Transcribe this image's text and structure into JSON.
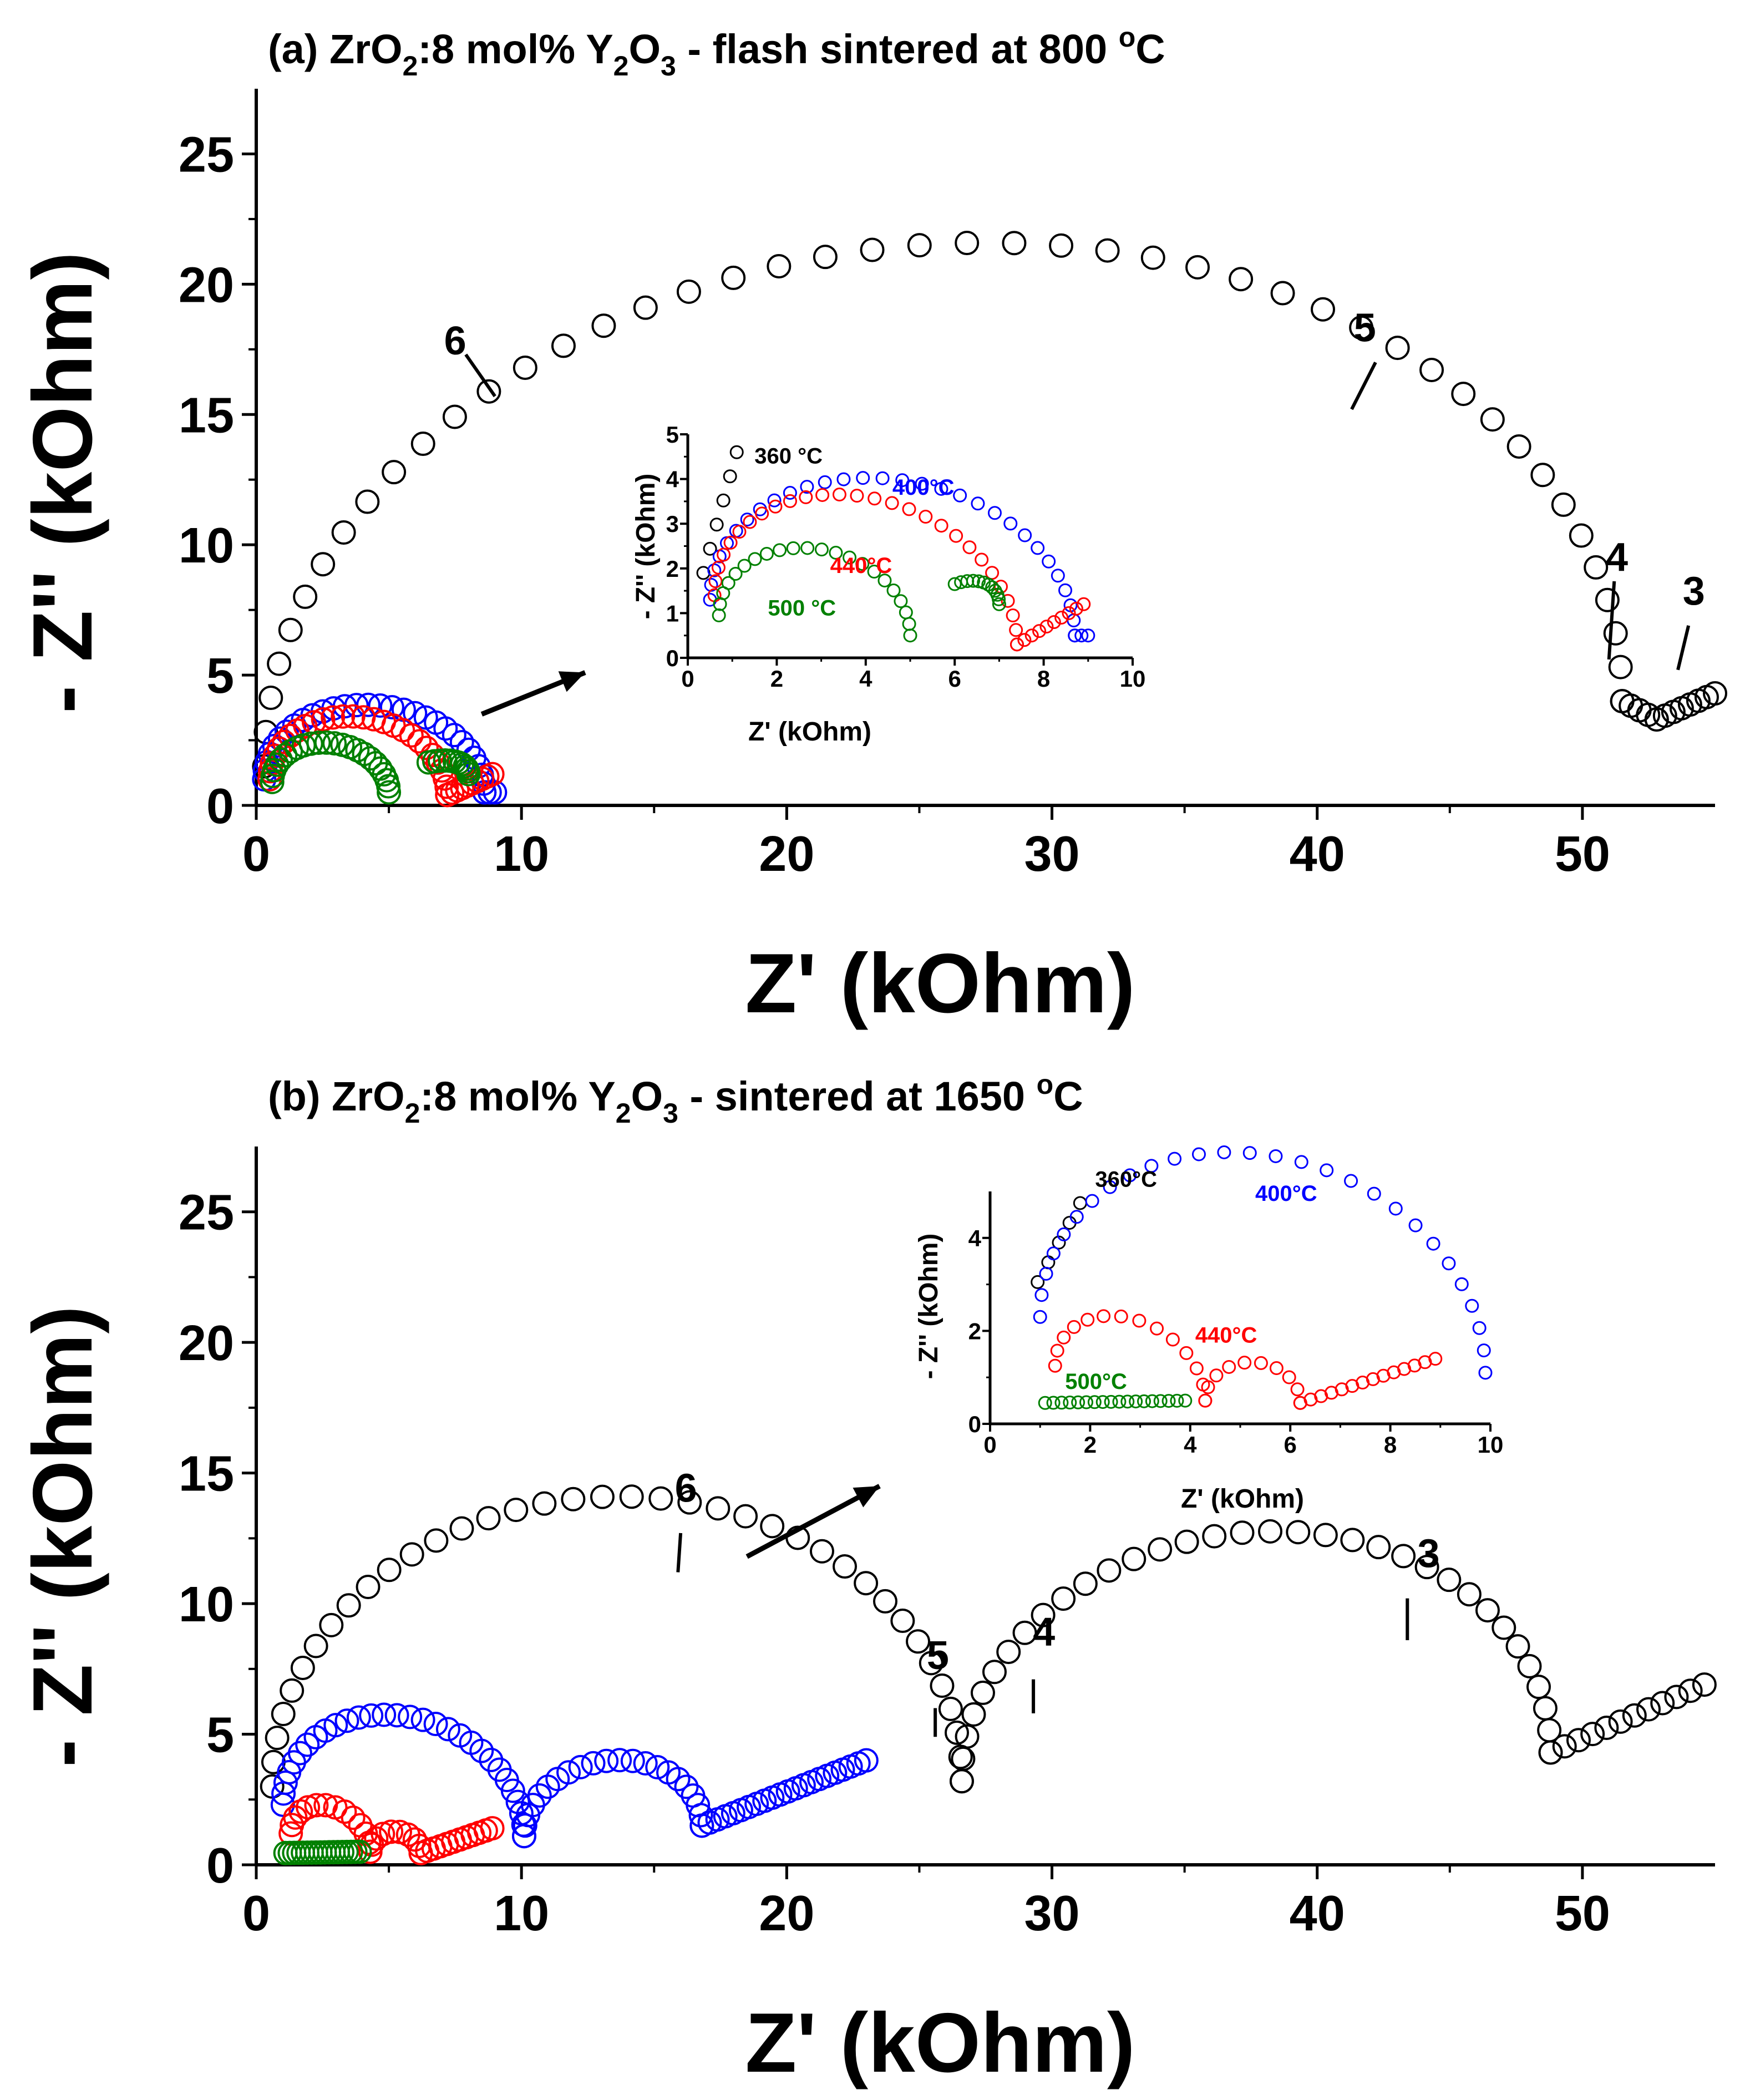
{
  "chart_data": [
    {
      "id": "a",
      "type": "scatter",
      "title": {
        "prefix": "(a)  ZrO",
        "sub1": "2",
        "mid": ":8 mol% Y",
        "sub2": "2",
        "mid2": "O",
        "sub3": "3",
        "suffix": " - flash sintered at 800 ",
        "sup": "o",
        "unit": "C"
      },
      "xlabel": "Z' (kOhm)",
      "ylabel": "- Z'' (kOhm)",
      "xlim": [
        0,
        55
      ],
      "ylim": [
        0,
        27.5
      ],
      "xticks": [
        0,
        10,
        20,
        30,
        40,
        50
      ],
      "yticks": [
        0,
        5,
        10,
        15,
        20,
        25
      ],
      "series": [
        {
          "name": "360 °C",
          "color": "#000000",
          "segments": [
            {
              "kind": "arc",
              "x0": 0.3,
              "x1": 51.5,
              "h": 18.8,
              "n": 46,
              "y0": 1.5,
              "y1": 4.0
            },
            {
              "kind": "line",
              "from": [
                51.5,
                4.0
              ],
              "to": [
                52.8,
                3.3
              ],
              "n": 5
            },
            {
              "kind": "line",
              "from": [
                52.8,
                3.3
              ],
              "to": [
                55,
                4.3
              ],
              "n": 8
            }
          ]
        },
        {
          "name": "400°C",
          "color": "#0000ff",
          "segments": [
            {
              "kind": "arc",
              "x0": 0.3,
              "x1": 8.6,
              "h": 3.1,
              "n": 30,
              "y0": 1.0,
              "y1": 0.5
            },
            {
              "kind": "line",
              "from": [
                8.6,
                0.5
              ],
              "to": [
                9.0,
                0.5
              ],
              "n": 3
            }
          ]
        },
        {
          "name": "440°C",
          "color": "#ff0000",
          "segments": [
            {
              "kind": "arc",
              "x0": 0.5,
              "x1": 7.2,
              "h": 2.7,
              "n": 28,
              "y0": 1.0,
              "y1": 0.4
            },
            {
              "kind": "line",
              "from": [
                7.2,
                0.4
              ],
              "to": [
                8.9,
                1.2
              ],
              "n": 10
            }
          ]
        },
        {
          "name": "500 °C",
          "color": "#008000",
          "segments": [
            {
              "kind": "arc",
              "x0": 0.6,
              "x1": 5.0,
              "h": 1.7,
              "n": 24,
              "y0": 0.9,
              "y1": 0.5
            },
            {
              "kind": "arc",
              "x0": 5.0,
              "x1": 8.0,
              "h": 0.8,
              "n": 12,
              "y0": 0.5,
              "y1": 1.2,
              "half": true
            }
          ]
        }
      ],
      "annotations": [
        {
          "text": "6",
          "x": 7.5,
          "y": 17.3,
          "line": [
            [
              7.9,
              17.3
            ],
            [
              9.0,
              15.7
            ]
          ]
        },
        {
          "text": "5",
          "x": 41.8,
          "y": 17.8,
          "line": [
            [
              42.2,
              17.0
            ],
            [
              41.3,
              15.2
            ]
          ]
        },
        {
          "text": "4",
          "x": 51.3,
          "y": 9.0,
          "line": [
            [
              51.2,
              8.6
            ],
            [
              51.0,
              5.6
            ]
          ]
        },
        {
          "text": "3",
          "x": 54.2,
          "y": 7.7,
          "line": [
            [
              54.0,
              6.9
            ],
            [
              53.6,
              5.2
            ]
          ]
        }
      ],
      "arrow": {
        "from": [
          8.5,
          3.5
        ],
        "to": [
          12.4,
          5.1
        ]
      },
      "inset": {
        "xlabel": "Z' (kOhm)",
        "ylabel": "- Z'' (kOhm)",
        "xlim": [
          0,
          10
        ],
        "ylim": [
          0,
          5
        ],
        "xticks": [
          0,
          2,
          4,
          6,
          8,
          10
        ],
        "yticks": [
          0,
          1,
          2,
          3,
          4,
          5
        ],
        "series": [
          {
            "name": "360 °C",
            "color": "#000000",
            "segments": [
              {
                "kind": "line",
                "from": [
                  0.35,
                  1.9
                ],
                "to": [
                  1.1,
                  4.6
                ],
                "n": 6
              }
            ]
          },
          {
            "name": "400°C",
            "color": "#0000ff",
            "segments": [
              {
                "kind": "arc",
                "x0": 0.5,
                "x1": 8.7,
                "h": 3.1,
                "n": 30,
                "y0": 1.3,
                "y1": 0.5
              },
              {
                "kind": "line",
                "from": [
                  8.7,
                  0.5
                ],
                "to": [
                  9.0,
                  0.5
                ],
                "n": 3
              }
            ]
          },
          {
            "name": "440°C",
            "color": "#ff0000",
            "segments": [
              {
                "kind": "arc",
                "x0": 0.6,
                "x1": 7.4,
                "h": 2.75,
                "n": 28,
                "y0": 1.4,
                "y1": 0.3
              },
              {
                "kind": "line",
                "from": [
                  7.4,
                  0.3
                ],
                "to": [
                  8.9,
                  1.2
                ],
                "n": 10
              }
            ]
          },
          {
            "name": "500 °C",
            "color": "#008000",
            "segments": [
              {
                "kind": "arc",
                "x0": 0.7,
                "x1": 5.0,
                "h": 1.72,
                "n": 22,
                "y0": 0.95,
                "y1": 0.5
              },
              {
                "kind": "arc",
                "x0": 5.0,
                "x1": 7.0,
                "h": 0.8,
                "n": 12,
                "y0": 0.5,
                "y1": 1.2,
                "half": true
              }
            ]
          }
        ],
        "labels": [
          {
            "text": "360 °C",
            "x": 1.5,
            "y": 4.35,
            "color": "#000000"
          },
          {
            "text": "400°C",
            "x": 4.6,
            "y": 3.65,
            "color": "#0000ff"
          },
          {
            "text": "440°C",
            "x": 3.2,
            "y": 1.9,
            "color": "#ff0000"
          },
          {
            "text": "500 °C",
            "x": 1.8,
            "y": 0.95,
            "color": "#008000"
          }
        ]
      }
    },
    {
      "id": "b",
      "type": "scatter",
      "title": {
        "prefix": "(b) ZrO",
        "sub1": "2",
        "mid": ":8 mol% Y",
        "sub2": "2",
        "mid2": "O",
        "sub3": "3",
        "suffix": " - sintered at 1650 ",
        "sup": "o",
        "unit": "C"
      },
      "xlabel": "Z' (kOhm)",
      "ylabel": "- Z'' (kOhm)",
      "xlim": [
        0,
        55
      ],
      "ylim": [
        0,
        27.5
      ],
      "xticks": [
        0,
        10,
        20,
        30,
        40,
        50
      ],
      "yticks": [
        0,
        5,
        10,
        15,
        20,
        25
      ],
      "series": [
        {
          "name": "360°C",
          "color": "#000000",
          "segments": [
            {
              "kind": "arc",
              "x0": 0.6,
              "x1": 26.6,
              "h": 11.0,
              "n": 38,
              "y0": 3.0,
              "y1": 3.2
            },
            {
              "kind": "arc",
              "x0": 26.6,
              "x1": 48.8,
              "h": 9.0,
              "n": 34,
              "y0": 3.2,
              "y1": 4.3
            },
            {
              "kind": "line",
              "from": [
                48.8,
                4.3
              ],
              "to": [
                54.6,
                6.9
              ],
              "n": 12
            }
          ]
        },
        {
          "name": "400°C",
          "color": "#0000ff",
          "segments": [
            {
              "kind": "arc",
              "x0": 1.0,
              "x1": 10.1,
              "h": 4.0,
              "n": 30,
              "y0": 2.3,
              "y1": 1.1
            },
            {
              "kind": "arc",
              "x0": 10.1,
              "x1": 16.8,
              "h": 2.7,
              "n": 22,
              "y0": 1.1,
              "y1": 1.5
            },
            {
              "kind": "line",
              "from": [
                16.8,
                1.5
              ],
              "to": [
                23.0,
                4.0
              ],
              "n": 22
            }
          ]
        },
        {
          "name": "440°C",
          "color": "#ff0000",
          "segments": [
            {
              "kind": "arc",
              "x0": 1.3,
              "x1": 4.3,
              "h": 1.4,
              "n": 14,
              "y0": 1.2,
              "y1": 0.5
            },
            {
              "kind": "arc",
              "x0": 4.3,
              "x1": 6.2,
              "h": 0.8,
              "n": 10,
              "y0": 0.5,
              "y1": 0.45
            },
            {
              "kind": "line",
              "from": [
                6.2,
                0.45
              ],
              "to": [
                8.9,
                1.4
              ],
              "n": 12
            }
          ]
        },
        {
          "name": "500°C",
          "color": "#008000",
          "segments": [
            {
              "kind": "line",
              "from": [
                1.1,
                0.45
              ],
              "to": [
                3.9,
                0.5
              ],
              "n": 18
            }
          ]
        }
      ],
      "annotations": [
        {
          "text": "6",
          "x": 16.2,
          "y": 13.9,
          "line": [
            [
              16.0,
              12.7
            ],
            [
              15.9,
              11.2
            ]
          ]
        },
        {
          "text": "5",
          "x": 25.7,
          "y": 7.5,
          "line": [
            [
              25.6,
              6.0
            ],
            [
              25.6,
              4.9
            ]
          ]
        },
        {
          "text": "4",
          "x": 29.7,
          "y": 8.4,
          "line": [
            [
              29.3,
              7.1
            ],
            [
              29.3,
              5.8
            ]
          ]
        },
        {
          "text": "3",
          "x": 44.2,
          "y": 11.4,
          "line": [
            [
              43.4,
              10.2
            ],
            [
              43.4,
              8.6
            ]
          ]
        }
      ],
      "arrow": {
        "from": [
          18.5,
          11.8
        ],
        "to": [
          23.5,
          14.5
        ]
      },
      "inset": {
        "xlabel": "Z' (kOhm)",
        "ylabel": "- Z'' (kOhm)",
        "xlim": [
          0,
          10
        ],
        "ylim": [
          0,
          5
        ],
        "xticks": [
          0,
          2,
          4,
          6,
          8,
          10
        ],
        "yticks": [
          0,
          2,
          4
        ],
        "series": [
          {
            "name": "360°C",
            "color": "#000000",
            "segments": [
              {
                "kind": "line",
                "from": [
                  0.95,
                  3.05
                ],
                "to": [
                  1.8,
                  4.75
                ],
                "n": 5
              }
            ]
          },
          {
            "name": "400°C",
            "color": "#0000ff",
            "segments": [
              {
                "kind": "arc",
                "x0": 1.0,
                "x1": 9.9,
                "h": 4.1,
                "n": 28,
                "y0": 2.3,
                "y1": 1.1
              }
            ]
          },
          {
            "name": "440°C",
            "color": "#ff0000",
            "segments": [
              {
                "kind": "arc",
                "x0": 1.3,
                "x1": 4.3,
                "h": 1.4,
                "n": 14,
                "y0": 1.25,
                "y1": 0.5
              },
              {
                "kind": "arc",
                "x0": 4.3,
                "x1": 6.2,
                "h": 0.85,
                "n": 10,
                "y0": 0.5,
                "y1": 0.45
              },
              {
                "kind": "line",
                "from": [
                  6.2,
                  0.45
                ],
                "to": [
                  8.9,
                  1.4
                ],
                "n": 14
              }
            ]
          },
          {
            "name": "500°C",
            "color": "#008000",
            "segments": [
              {
                "kind": "line",
                "from": [
                  1.1,
                  0.45
                ],
                "to": [
                  3.9,
                  0.5
                ],
                "n": 18
              }
            ]
          }
        ],
        "labels": [
          {
            "text": "360°C",
            "x": 2.1,
            "y": 5.1,
            "color": "#000000"
          },
          {
            "text": "400°C",
            "x": 5.3,
            "y": 4.8,
            "color": "#0000ff"
          },
          {
            "text": "440°C",
            "x": 4.1,
            "y": 1.75,
            "color": "#ff0000"
          },
          {
            "text": "500°C",
            "x": 1.5,
            "y": 0.75,
            "color": "#008000"
          }
        ]
      }
    }
  ]
}
